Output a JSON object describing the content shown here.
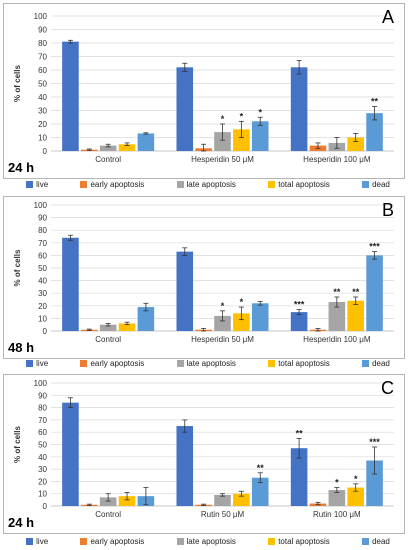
{
  "colors": [
    "#4472c4",
    "#ed7d31",
    "#a5a5a5",
    "#ffc000",
    "#5b9bd5"
  ],
  "legend": [
    "live",
    "early apoptosis",
    "late apoptosis",
    "total apoptosis",
    "dead"
  ],
  "chart_data": [
    {
      "type": "bar",
      "panel_letter": "A",
      "time_label": "24 h",
      "ylabel": "% of cells",
      "ylim": [
        0,
        100
      ],
      "yticks": [
        0,
        10,
        20,
        30,
        40,
        50,
        60,
        70,
        80,
        90,
        100
      ],
      "grid": true,
      "categories": [
        "Control",
        "Hesperidin 50 μM",
        "Hesperidin 100 μM"
      ],
      "series": [
        {
          "name": "live",
          "values": [
            81,
            62,
            62
          ],
          "errors": [
            1,
            3,
            5
          ],
          "sig": [
            "",
            "",
            ""
          ]
        },
        {
          "name": "early apoptosis",
          "values": [
            1,
            2,
            4
          ],
          "errors": [
            0.5,
            3,
            2
          ],
          "sig": [
            "",
            "",
            ""
          ]
        },
        {
          "name": "late apoptosis",
          "values": [
            4,
            14,
            6
          ],
          "errors": [
            1,
            6,
            4
          ],
          "sig": [
            "",
            "*",
            ""
          ]
        },
        {
          "name": "total apoptosis",
          "values": [
            5,
            16,
            10
          ],
          "errors": [
            1,
            6,
            3
          ],
          "sig": [
            "",
            "*",
            ""
          ]
        },
        {
          "name": "dead",
          "values": [
            13,
            22,
            28
          ],
          "errors": [
            0.5,
            3,
            5
          ],
          "sig": [
            "",
            "*",
            "**"
          ]
        }
      ]
    },
    {
      "type": "bar",
      "panel_letter": "B",
      "time_label": "48 h",
      "ylabel": "% of cells",
      "ylim": [
        0,
        100
      ],
      "yticks": [
        0,
        10,
        20,
        30,
        40,
        50,
        60,
        70,
        80,
        90,
        100
      ],
      "grid": true,
      "categories": [
        "Control",
        "Hesperidin 50 μM",
        "Hesperidin 100 μM"
      ],
      "series": [
        {
          "name": "live",
          "values": [
            74,
            63,
            15
          ],
          "errors": [
            2,
            3,
            2
          ],
          "sig": [
            "",
            "",
            "***"
          ]
        },
        {
          "name": "early apoptosis",
          "values": [
            1,
            1,
            1
          ],
          "errors": [
            0.5,
            1,
            1
          ],
          "sig": [
            "",
            "",
            ""
          ]
        },
        {
          "name": "late apoptosis",
          "values": [
            5,
            12,
            23
          ],
          "errors": [
            1,
            4,
            4
          ],
          "sig": [
            "",
            "*",
            "**"
          ]
        },
        {
          "name": "total apoptosis",
          "values": [
            6,
            14,
            24
          ],
          "errors": [
            1,
            5,
            3
          ],
          "sig": [
            "",
            "*",
            "**"
          ]
        },
        {
          "name": "dead",
          "values": [
            19,
            22,
            60
          ],
          "errors": [
            3,
            1.5,
            3
          ],
          "sig": [
            "",
            "",
            "***"
          ]
        }
      ]
    },
    {
      "type": "bar",
      "panel_letter": "C",
      "time_label": "24 h",
      "ylabel": "% of cells",
      "ylim": [
        0,
        100
      ],
      "yticks": [
        0,
        10,
        20,
        30,
        40,
        50,
        60,
        70,
        80,
        90,
        100
      ],
      "grid": true,
      "categories": [
        "Control",
        "Rutin 50 μM",
        "Rutin 100 μM"
      ],
      "series": [
        {
          "name": "live",
          "values": [
            84,
            65,
            47
          ],
          "errors": [
            4,
            5,
            8
          ],
          "sig": [
            "",
            "",
            "**"
          ]
        },
        {
          "name": "early apoptosis",
          "values": [
            1,
            1,
            2
          ],
          "errors": [
            0.5,
            0.5,
            1
          ],
          "sig": [
            "",
            "",
            ""
          ]
        },
        {
          "name": "late apoptosis",
          "values": [
            7,
            9,
            13
          ],
          "errors": [
            3,
            1,
            2
          ],
          "sig": [
            "",
            "",
            "*"
          ]
        },
        {
          "name": "total apoptosis",
          "values": [
            8,
            10,
            15
          ],
          "errors": [
            3,
            2,
            3
          ],
          "sig": [
            "",
            "",
            "*"
          ]
        },
        {
          "name": "dead",
          "values": [
            8,
            23,
            37
          ],
          "errors": [
            7,
            4,
            11
          ],
          "sig": [
            "",
            "**",
            "***"
          ]
        }
      ]
    }
  ]
}
